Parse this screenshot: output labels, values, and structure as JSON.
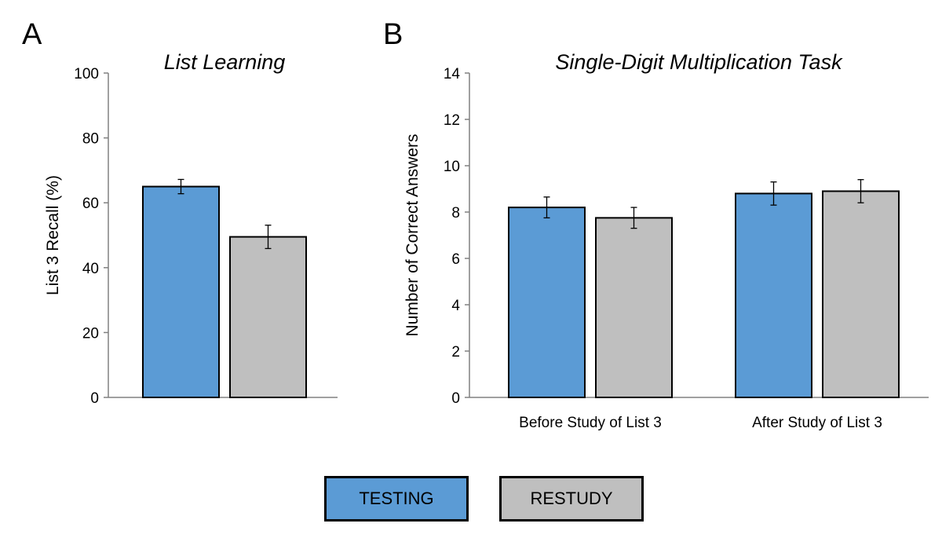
{
  "colors": {
    "testing": "#5b9bd5",
    "restudy": "#bfbfbf"
  },
  "legend": {
    "testing_label": "TESTING",
    "restudy_label": "RESTUDY"
  },
  "chart_data": [
    {
      "panel": "A",
      "type": "bar",
      "title": "List Learning",
      "ylabel": "List 3 Recall (%)",
      "xlabel": "",
      "ylim": [
        0,
        100
      ],
      "yticks": [
        0,
        20,
        40,
        60,
        80,
        100
      ],
      "categories": [
        ""
      ],
      "series": [
        {
          "name": "TESTING",
          "values": [
            65
          ],
          "error": [
            2.2
          ]
        },
        {
          "name": "RESTUDY",
          "values": [
            49.5
          ],
          "error": [
            3.6
          ]
        }
      ]
    },
    {
      "panel": "B",
      "type": "bar",
      "title": "Single-Digit Multiplication Task",
      "ylabel": "Number of Correct Answers",
      "xlabel": "",
      "ylim": [
        0,
        14
      ],
      "yticks": [
        0,
        2,
        4,
        6,
        8,
        10,
        12,
        14
      ],
      "categories": [
        "Before Study of List 3",
        "After Study of List 3"
      ],
      "series": [
        {
          "name": "TESTING",
          "values": [
            8.2,
            8.8
          ],
          "error": [
            0.45,
            0.5
          ]
        },
        {
          "name": "RESTUDY",
          "values": [
            7.75,
            8.9
          ],
          "error": [
            0.45,
            0.5
          ]
        }
      ]
    }
  ]
}
